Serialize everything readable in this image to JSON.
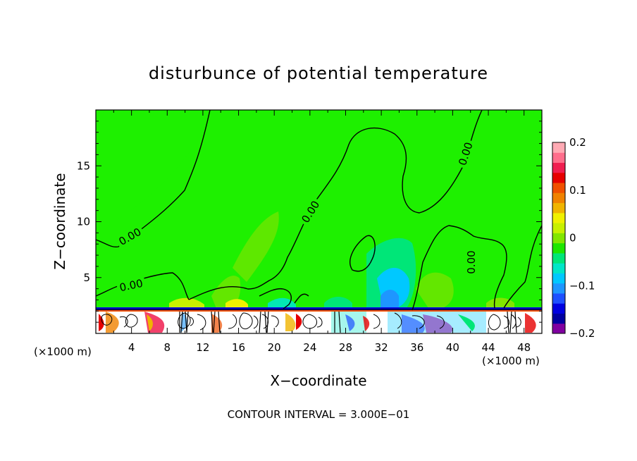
{
  "chart_data": {
    "type": "heatmap",
    "title": "disturbunce of potential temperature",
    "xlabel": "X−coordinate",
    "ylabel": "Z−coordinate",
    "x_unit_left": "(×1000 m)",
    "x_unit_right": "(×1000 m)",
    "x_ticks": [
      "4",
      "8",
      "12",
      "16",
      "20",
      "24",
      "28",
      "32",
      "36",
      "40",
      "44",
      "48"
    ],
    "y_ticks": [
      "5",
      "10",
      "15"
    ],
    "xlim": [
      0,
      50
    ],
    "ylim": [
      0,
      20
    ],
    "colorbar": {
      "range": [
        -0.2,
        0.2
      ],
      "tick_labels": [
        "0.2",
        "0.1",
        "0",
        "−0.1",
        "−0.2"
      ],
      "colors": [
        "#8000a0",
        "#0000a0",
        "#0000e0",
        "#1e50ff",
        "#1e96ff",
        "#00c8ff",
        "#00e6c8",
        "#00e678",
        "#1ee600",
        "#82e600",
        "#c8f000",
        "#f0f000",
        "#f0b400",
        "#f08200",
        "#f05000",
        "#e60000",
        "#f01e50",
        "#ff6e8c",
        "#ffaab4"
      ]
    },
    "contour_labels": [
      "0.00",
      "0.00",
      "0.00",
      "0.00",
      "0.00"
    ],
    "footer": "CONTOUR INTERVAL = 3.000E−01"
  }
}
